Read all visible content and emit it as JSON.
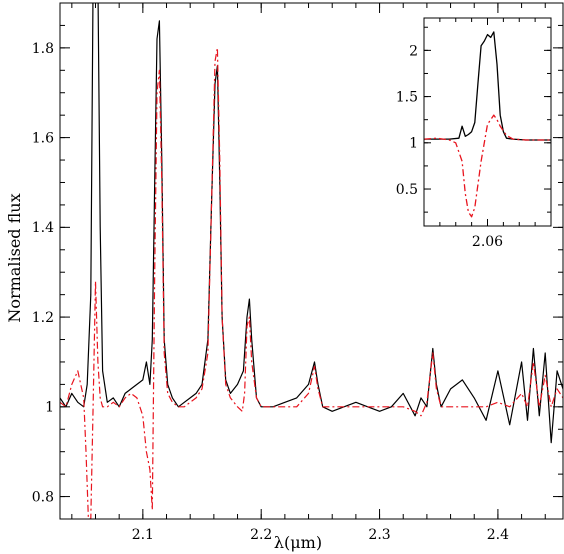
{
  "chart_data": [
    {
      "type": "line",
      "xlabel": "λ(μm)",
      "ylabel": "Normalised flux",
      "xlim": [
        2.03,
        2.455
      ],
      "ylim": [
        0.75,
        1.9
      ],
      "x_ticks": [
        2.1,
        2.2,
        2.3,
        2.4
      ],
      "x_tick_labels": [
        "2.1",
        "2.2",
        "2.3",
        "2.4"
      ],
      "y_ticks": [
        0.8,
        1.0,
        1.2,
        1.4,
        1.6,
        1.8
      ],
      "y_tick_labels": [
        "0.8",
        "1",
        "1.2",
        "1.4",
        "1.6",
        "1.8"
      ],
      "grid": false,
      "series": [
        {
          "style": "solid",
          "color": "#000000",
          "x": [
            2.03,
            2.035,
            2.04,
            2.045,
            2.05,
            2.053,
            2.056,
            2.058,
            2.06,
            2.062,
            2.064,
            2.066,
            2.07,
            2.075,
            2.08,
            2.085,
            2.09,
            2.095,
            2.1,
            2.103,
            2.106,
            2.108,
            2.11,
            2.112,
            2.114,
            2.116,
            2.118,
            2.121,
            2.125,
            2.13,
            2.135,
            2.14,
            2.145,
            2.15,
            2.155,
            2.158,
            2.161,
            2.163,
            2.165,
            2.167,
            2.17,
            2.174,
            2.18,
            2.185,
            2.188,
            2.19,
            2.192,
            2.196,
            2.2,
            2.21,
            2.22,
            2.23,
            2.24,
            2.245,
            2.248,
            2.252,
            2.26,
            2.27,
            2.28,
            2.29,
            2.3,
            2.31,
            2.32,
            2.33,
            2.335,
            2.34,
            2.345,
            2.348,
            2.352,
            2.36,
            2.37,
            2.38,
            2.39,
            2.4,
            2.41,
            2.42,
            2.425,
            2.43,
            2.435,
            2.44,
            2.445,
            2.45,
            2.455
          ],
          "y": [
            1.02,
            1.0,
            1.03,
            1.01,
            1.0,
            1.05,
            1.25,
            1.95,
            1.95,
            1.95,
            1.4,
            1.08,
            1.01,
            1.02,
            1.0,
            1.03,
            1.04,
            1.05,
            1.06,
            1.1,
            1.05,
            1.15,
            1.5,
            1.82,
            1.86,
            1.55,
            1.15,
            1.05,
            1.02,
            1.0,
            1.01,
            1.02,
            1.03,
            1.05,
            1.15,
            1.45,
            1.72,
            1.76,
            1.5,
            1.2,
            1.06,
            1.03,
            1.05,
            1.08,
            1.2,
            1.24,
            1.15,
            1.02,
            1.0,
            1.0,
            1.01,
            1.02,
            1.05,
            1.1,
            1.05,
            1.0,
            0.99,
            1.0,
            1.01,
            1.0,
            0.99,
            1.0,
            1.03,
            0.98,
            1.02,
            1.0,
            1.13,
            1.05,
            1.0,
            1.04,
            1.06,
            1.02,
            0.97,
            1.08,
            0.96,
            1.1,
            0.97,
            1.13,
            0.98,
            1.12,
            0.92,
            1.08,
            1.04
          ]
        },
        {
          "style": "dash-dot",
          "color": "#e8141e",
          "x": [
            2.03,
            2.035,
            2.04,
            2.045,
            2.05,
            2.052,
            2.054,
            2.056,
            2.058,
            2.06,
            2.062,
            2.064,
            2.066,
            2.07,
            2.075,
            2.08,
            2.085,
            2.09,
            2.095,
            2.1,
            2.103,
            2.106,
            2.108,
            2.11,
            2.112,
            2.114,
            2.116,
            2.118,
            2.121,
            2.125,
            2.13,
            2.135,
            2.14,
            2.145,
            2.15,
            2.155,
            2.158,
            2.161,
            2.163,
            2.165,
            2.167,
            2.17,
            2.174,
            2.18,
            2.184,
            2.186,
            2.188,
            2.19,
            2.192,
            2.196,
            2.2,
            2.21,
            2.22,
            2.23,
            2.24,
            2.245,
            2.248,
            2.252,
            2.26,
            2.27,
            2.28,
            2.29,
            2.3,
            2.31,
            2.32,
            2.33,
            2.335,
            2.34,
            2.345,
            2.348,
            2.352,
            2.36,
            2.37,
            2.38,
            2.39,
            2.4,
            2.41,
            2.42,
            2.425,
            2.43,
            2.435,
            2.44,
            2.445,
            2.45,
            2.455
          ],
          "y": [
            1.01,
            1.0,
            1.05,
            1.08,
            1.02,
            0.9,
            0.75,
            0.75,
            1.0,
            1.28,
            1.1,
            1.02,
            1.0,
            1.0,
            1.01,
            1.0,
            1.02,
            1.03,
            1.02,
            0.98,
            0.9,
            0.86,
            0.77,
            1.3,
            1.7,
            1.75,
            1.5,
            1.12,
            1.03,
            1.01,
            1.0,
            1.0,
            1.01,
            1.02,
            1.04,
            1.12,
            1.45,
            1.77,
            1.8,
            1.55,
            1.2,
            1.05,
            1.02,
            1.0,
            0.99,
            1.03,
            1.18,
            1.2,
            1.1,
            1.02,
            1.0,
            1.0,
            1.0,
            1.0,
            1.03,
            1.09,
            1.04,
            1.0,
            1.0,
            1.0,
            1.0,
            1.0,
            1.0,
            1.0,
            1.0,
            0.99,
            0.98,
            1.01,
            1.12,
            1.04,
            1.0,
            1.0,
            1.0,
            1.0,
            1.0,
            1.01,
            1.0,
            1.03,
            1.0,
            1.1,
            1.0,
            1.07,
            1.0,
            1.04,
            1.02
          ]
        }
      ]
    },
    {
      "type": "line",
      "xlabel": "",
      "ylabel": "",
      "xlim": [
        2.04,
        2.08
      ],
      "ylim": [
        0.1,
        2.35
      ],
      "x_ticks": [
        2.06
      ],
      "x_tick_labels": [
        "2.06"
      ],
      "y_ticks": [
        0.5,
        1.0,
        1.5,
        2.0
      ],
      "y_tick_labels": [
        "0.5",
        "1",
        "1.5",
        "2"
      ],
      "grid": false,
      "legend": "none",
      "series": [
        {
          "style": "solid",
          "color": "#000000",
          "x": [
            2.04,
            2.044,
            2.048,
            2.051,
            2.052,
            2.053,
            2.054,
            2.055,
            2.056,
            2.057,
            2.058,
            2.059,
            2.06,
            2.061,
            2.062,
            2.063,
            2.064,
            2.065,
            2.066,
            2.068,
            2.072,
            2.076,
            2.08
          ],
          "y": [
            1.04,
            1.04,
            1.04,
            1.05,
            1.18,
            1.07,
            1.09,
            1.12,
            1.22,
            1.65,
            2.05,
            2.1,
            2.17,
            2.14,
            2.2,
            1.85,
            1.3,
            1.12,
            1.05,
            1.04,
            1.03,
            1.03,
            1.03
          ]
        },
        {
          "style": "dash-dot",
          "color": "#e8141e",
          "x": [
            2.04,
            2.044,
            2.048,
            2.05,
            2.052,
            2.053,
            2.054,
            2.055,
            2.056,
            2.058,
            2.06,
            2.062,
            2.063,
            2.064,
            2.066,
            2.068,
            2.072,
            2.076,
            2.08
          ],
          "y": [
            1.04,
            1.05,
            1.03,
            1.0,
            0.8,
            0.45,
            0.25,
            0.2,
            0.3,
            0.8,
            1.2,
            1.3,
            1.25,
            1.18,
            1.08,
            1.04,
            1.03,
            1.03,
            1.03
          ]
        }
      ]
    }
  ]
}
